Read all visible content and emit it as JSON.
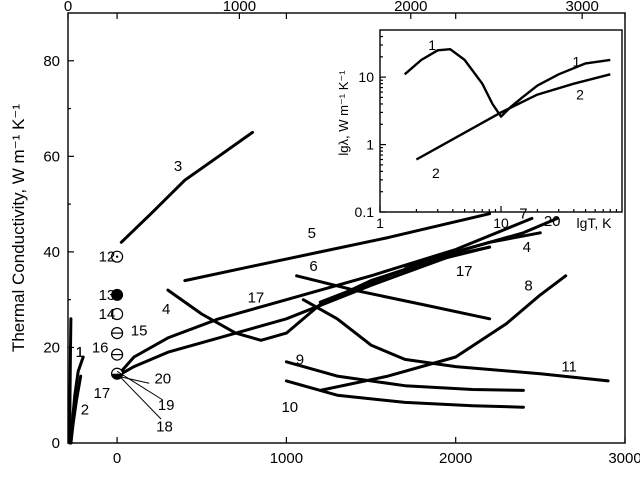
{
  "chart_data": [
    {
      "type": "line",
      "ylabel": "Thermal Conductivity, W m⁻¹ K⁻¹",
      "xlabel": "",
      "xlim": [
        -290,
        3000
      ],
      "ylim": [
        0,
        90
      ],
      "xticks": [
        0,
        1000,
        2000,
        3000
      ],
      "yticks": [
        0,
        20,
        40,
        60,
        80
      ],
      "xlim_top": [
        0,
        3250
      ],
      "xticks_top": [
        0,
        1000,
        2000,
        3000
      ],
      "series": [
        {
          "name": "1",
          "label_at": [
            -220,
            19
          ],
          "points": [
            [
              -273,
              0
            ],
            [
              -265,
              4
            ],
            [
              -250,
              10
            ],
            [
              -230,
              15
            ],
            [
              -200,
              18
            ]
          ]
        },
        {
          "name": "1",
          "label_at": [
            -220,
            19
          ],
          "points": [
            [
              -280,
              0
            ],
            [
              -278,
              10
            ],
            [
              -275,
              20
            ],
            [
              -273,
              26
            ]
          ]
        },
        {
          "name": "2",
          "label_at": [
            -190,
            7
          ],
          "points": [
            [
              -273,
              0
            ],
            [
              -260,
              4
            ],
            [
              -240,
              9
            ],
            [
              -215,
              14
            ]
          ]
        },
        {
          "name": "3",
          "label_at": [
            360,
            58
          ],
          "points": [
            [
              25,
              42
            ],
            [
              200,
              48
            ],
            [
              400,
              55
            ],
            [
              600,
              60
            ],
            [
              800,
              65
            ]
          ]
        },
        {
          "name": "4",
          "label_at": [
            290,
            28
          ],
          "points": [
            [
              300,
              32
            ],
            [
              500,
              27
            ],
            [
              700,
              23
            ],
            [
              850,
              21.5
            ],
            [
              1000,
              23
            ],
            [
              1200,
              29
            ],
            [
              1500,
              34
            ],
            [
              1800,
              37.5
            ],
            [
              2200,
              41
            ]
          ]
        },
        {
          "name": "4",
          "label_at": [
            2420,
            41
          ],
          "points": [
            [
              1700,
              37
            ],
            [
              1900,
              39
            ],
            [
              2200,
              42
            ],
            [
              2500,
              44
            ]
          ]
        },
        {
          "name": "5",
          "label_at": [
            1150,
            44
          ],
          "points": [
            [
              400,
              34
            ],
            [
              800,
              37
            ],
            [
              1200,
              40
            ],
            [
              1600,
              43
            ],
            [
              2200,
              48
            ]
          ]
        },
        {
          "name": "6",
          "label_at": [
            1160,
            37
          ],
          "points": [
            [
              1060,
              35
            ],
            [
              1400,
              32
            ],
            [
              1800,
              29
            ],
            [
              2200,
              26
            ]
          ]
        },
        {
          "name": "7",
          "label_at": [
            2400,
            48
          ],
          "points": [
            [
              0,
              14
            ],
            [
              100,
              18
            ],
            [
              300,
              22
            ],
            [
              600,
              26
            ],
            [
              1000,
              30
            ],
            [
              1500,
              35
            ],
            [
              2000,
              40.5
            ],
            [
              2450,
              47
            ]
          ]
        },
        {
          "name": "8",
          "label_at": [
            2430,
            33
          ],
          "points": [
            [
              1200,
              11
            ],
            [
              1600,
              14
            ],
            [
              2000,
              18
            ],
            [
              2300,
              25
            ],
            [
              2500,
              31
            ],
            [
              2650,
              35
            ]
          ]
        },
        {
          "name": "9",
          "label_at": [
            1080,
            17.5
          ],
          "points": [
            [
              1000,
              17
            ],
            [
              1300,
              14
            ],
            [
              1700,
              12
            ],
            [
              2100,
              11.2
            ],
            [
              2400,
              11
            ]
          ]
        },
        {
          "name": "10",
          "label_at": [
            1020,
            7.5
          ],
          "points": [
            [
              1000,
              13
            ],
            [
              1300,
              10
            ],
            [
              1700,
              8.5
            ],
            [
              2100,
              7.8
            ],
            [
              2400,
              7.5
            ]
          ]
        },
        {
          "name": "11",
          "label_at": [
            2670,
            16
          ],
          "points": [
            [
              1100,
              30
            ],
            [
              1300,
              26
            ],
            [
              1500,
              20.5
            ],
            [
              1700,
              17.5
            ],
            [
              2000,
              16
            ],
            [
              2500,
              14.5
            ],
            [
              2900,
              13
            ]
          ]
        },
        {
          "name": "17",
          "label_at": [
            2050,
            36
          ],
          "points": [
            [
              0,
              14
            ],
            [
              100,
              16
            ],
            [
              300,
              19
            ],
            [
              600,
              22
            ],
            [
              1000,
              26
            ],
            [
              1500,
              33
            ],
            [
              2000,
              39.5
            ],
            [
              2200,
              41
            ]
          ]
        },
        {
          "name": "17",
          "label_at": [
            820,
            30.5
          ],
          "points": []
        },
        {
          "name": "20",
          "label_at": [
            2570,
            46.5
          ],
          "points": [
            [
              1200,
              29.5
            ],
            [
              1600,
              35
            ],
            [
              2000,
              40
            ],
            [
              2400,
              44
            ],
            [
              2600,
              47
            ]
          ]
        }
      ],
      "markers": [
        {
          "name": "12",
          "x": 0,
          "y": 39,
          "style": "dot"
        },
        {
          "name": "13",
          "x": 0,
          "y": 31,
          "style": "filled"
        },
        {
          "name": "14",
          "x": 0,
          "y": 27,
          "style": "open"
        },
        {
          "name": "15",
          "x": 0,
          "y": 23,
          "style": "dash"
        },
        {
          "name": "16",
          "x": 0,
          "y": 18.5,
          "style": "dash"
        },
        {
          "name": "20",
          "x": 0,
          "y": 14.5,
          "style": "half"
        }
      ],
      "labels": [
        {
          "text": "12",
          "x": -60,
          "y": 39
        },
        {
          "text": "13",
          "x": -60,
          "y": 31
        },
        {
          "text": "14",
          "x": -60,
          "y": 27
        },
        {
          "text": "15",
          "x": 130,
          "y": 23.5
        },
        {
          "text": "16",
          "x": -100,
          "y": 20
        },
        {
          "text": "17",
          "x": -90,
          "y": 10.5
        },
        {
          "text": "20",
          "x": 270,
          "y": 13.5
        },
        {
          "text": "19",
          "x": 290,
          "y": 8
        },
        {
          "text": "18",
          "x": 280,
          "y": 3.5
        }
      ]
    },
    {
      "type": "line",
      "ylabel": "lgλ, W m⁻¹ K⁻¹",
      "xlabel": "lgT, K",
      "scale": "log-log",
      "xlim": [
        1,
        100
      ],
      "ylim": [
        0.1,
        50
      ],
      "xticks": [
        1,
        10
      ],
      "yticks": [
        0.1,
        1,
        10
      ],
      "series": [
        {
          "name": "1",
          "points": [
            [
              1.6,
              11
            ],
            [
              2.2,
              18
            ],
            [
              3,
              25
            ],
            [
              3.8,
              26
            ],
            [
              5,
              18
            ],
            [
              7,
              8
            ],
            [
              8.5,
              4
            ],
            [
              10,
              2.6
            ],
            [
              12,
              3.6
            ],
            [
              15,
              5
            ],
            [
              20,
              7.5
            ],
            [
              30,
              11
            ],
            [
              50,
              16
            ],
            [
              80,
              18
            ]
          ]
        },
        {
          "name": "2",
          "points": [
            [
              2,
              0.6
            ],
            [
              3,
              0.9
            ],
            [
              5,
              1.5
            ],
            [
              10,
              3
            ],
            [
              20,
              5.5
            ],
            [
              40,
              8
            ],
            [
              80,
              11
            ]
          ]
        }
      ],
      "labels": [
        {
          "text": "1",
          "x": 2.7,
          "y": 30
        },
        {
          "text": "2",
          "x": 2.9,
          "y": 0.38
        },
        {
          "text": "1",
          "x": 42,
          "y": 17
        },
        {
          "text": "2",
          "x": 45,
          "y": 5.5
        }
      ]
    }
  ]
}
